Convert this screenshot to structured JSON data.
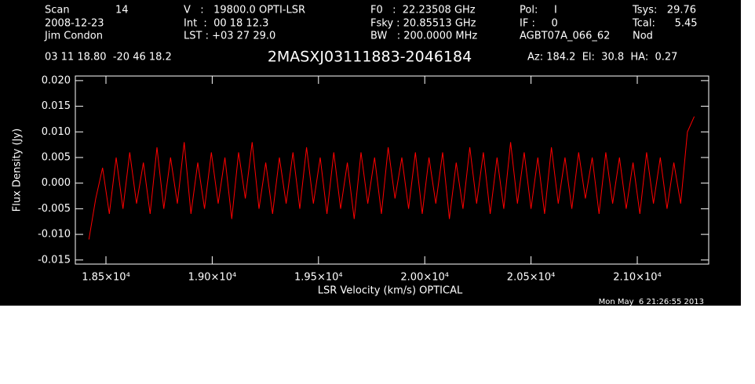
{
  "chart_data": {
    "type": "line",
    "title": "2MASXJ03111883-2046184",
    "header": [
      [
        "Scan",
        "2008-12-23",
        "Jim Condon"
      ],
      [
        "14"
      ],
      [
        "V   :   19800.0 OPTI-LSR",
        "Int  :  00 18 12.3",
        "LST : +03 27 29.0"
      ],
      [
        "F0   :  22.23508 GHz",
        "Fsky : 20.85513 GHz",
        "BW   : 200.0000 MHz"
      ],
      [
        "Pol:     I",
        "IF :     0",
        "AGBT07A_066_62"
      ],
      [
        "Tsys:   29.76",
        "Tcal:      5.45",
        "Nod"
      ]
    ],
    "position": "03 11 18.80  -20 46 18.2",
    "pointing": "Az: 184.2  El:  30.8  HA:  0.27",
    "timestamp": "Mon May  6 21:26:55 2013",
    "xlabel": "LSR Velocity (km/s) OPTICAL",
    "ylabel": "Flux Density (Jy)",
    "xlim": [
      18356,
      21336
    ],
    "ylim": [
      -0.0158,
      0.0209
    ],
    "xticks": [
      {
        "value": 18500,
        "label": "1.85×10⁴"
      },
      {
        "value": 19000,
        "label": "1.90×10⁴"
      },
      {
        "value": 19500,
        "label": "1.95×10⁴"
      },
      {
        "value": 20000,
        "label": "2.00×10⁴"
      },
      {
        "value": 20500,
        "label": "2.05×10⁴"
      },
      {
        "value": 21000,
        "label": "2.10×10⁴"
      }
    ],
    "yticks": [
      {
        "value": 0.02,
        "label": "0.020"
      },
      {
        "value": 0.015,
        "label": "0.015"
      },
      {
        "value": 0.01,
        "label": "0.010"
      },
      {
        "value": 0.005,
        "label": "0.005"
      },
      {
        "value": 0,
        "label": "0.000"
      },
      {
        "value": -0.005,
        "label": "-0.005"
      },
      {
        "value": -0.01,
        "label": "-0.010"
      },
      {
        "value": -0.015,
        "label": "-0.015"
      }
    ],
    "x": [
      18420,
      18452,
      18484,
      18516,
      18548,
      18580,
      18612,
      18644,
      18676,
      18708,
      18740,
      18772,
      18804,
      18836,
      18868,
      18900,
      18932,
      18964,
      18996,
      19028,
      19060,
      19092,
      19124,
      19156,
      19188,
      19220,
      19252,
      19284,
      19316,
      19348,
      19380,
      19412,
      19444,
      19476,
      19508,
      19540,
      19572,
      19604,
      19636,
      19668,
      19700,
      19732,
      19764,
      19796,
      19828,
      19860,
      19892,
      19924,
      19956,
      19988,
      20020,
      20052,
      20084,
      20116,
      20148,
      20180,
      20212,
      20244,
      20276,
      20308,
      20340,
      20372,
      20404,
      20436,
      20468,
      20500,
      20532,
      20564,
      20596,
      20628,
      20660,
      20692,
      20724,
      20756,
      20788,
      20820,
      20852,
      20884,
      20916,
      20948,
      20980,
      21012,
      21044,
      21076,
      21108,
      21140,
      21172,
      21204,
      21236,
      21268
    ],
    "series": [
      {
        "color": "#ff0000",
        "values": [
          -0.011,
          -0.003,
          0.003,
          -0.006,
          0.005,
          -0.005,
          0.006,
          -0.004,
          0.004,
          -0.006,
          0.007,
          -0.005,
          0.005,
          -0.004,
          0.008,
          -0.006,
          0.004,
          -0.005,
          0.006,
          -0.004,
          0.005,
          -0.007,
          0.006,
          -0.003,
          0.008,
          -0.005,
          0.004,
          -0.006,
          0.005,
          -0.004,
          0.006,
          -0.005,
          0.007,
          -0.004,
          0.005,
          -0.006,
          0.006,
          -0.005,
          0.004,
          -0.007,
          0.006,
          -0.004,
          0.005,
          -0.006,
          0.007,
          -0.003,
          0.005,
          -0.005,
          0.006,
          -0.006,
          0.005,
          -0.004,
          0.006,
          -0.007,
          0.004,
          -0.005,
          0.007,
          -0.004,
          0.006,
          -0.006,
          0.005,
          -0.005,
          0.008,
          -0.004,
          0.006,
          -0.005,
          0.005,
          -0.006,
          0.007,
          -0.004,
          0.005,
          -0.005,
          0.006,
          -0.003,
          0.005,
          -0.006,
          0.006,
          -0.004,
          0.005,
          -0.005,
          0.004,
          -0.006,
          0.006,
          -0.004,
          0.005,
          -0.005,
          0.004,
          -0.004,
          0.01,
          0.013
        ]
      }
    ]
  }
}
